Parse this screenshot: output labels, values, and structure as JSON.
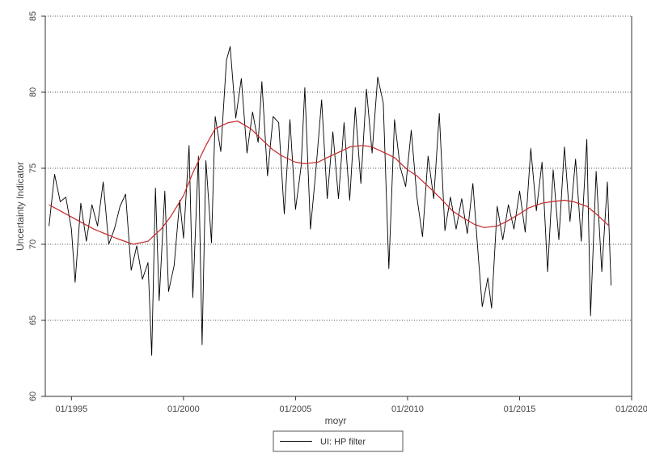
{
  "chart_data": {
    "type": "line",
    "title": "",
    "xlabel": "moyr",
    "ylabel": "Uncertainty Indicator",
    "xlim": [
      "1993-11",
      "2020-01"
    ],
    "ylim": [
      60,
      85
    ],
    "x_tick_labels": [
      "01/1995",
      "01/2000",
      "01/2005",
      "01/2010",
      "01/2015",
      "01/2020"
    ],
    "y_tick_labels": [
      "60",
      "65",
      "70",
      "75",
      "80",
      "85"
    ],
    "y_ticks": [
      60,
      65,
      70,
      75,
      80,
      85
    ],
    "grid": "horizontal dotted",
    "legend": {
      "position": "bottom-center",
      "label": "UI: HP filter"
    },
    "colors": {
      "raw": "#000000",
      "trend": "#c62828"
    },
    "series": [
      {
        "name": "UI",
        "points": [
          [
            "1994-01",
            71.2
          ],
          [
            "1994-04",
            74.6
          ],
          [
            "1994-07",
            72.8
          ],
          [
            "1994-10",
            73.1
          ],
          [
            "1995-01",
            71.0
          ],
          [
            "1995-03",
            67.5
          ],
          [
            "1995-06",
            72.7
          ],
          [
            "1995-09",
            70.2
          ],
          [
            "1995-12",
            72.6
          ],
          [
            "1996-03",
            71.2
          ],
          [
            "1996-06",
            74.1
          ],
          [
            "1996-09",
            70.0
          ],
          [
            "1996-12",
            71.0
          ],
          [
            "1997-03",
            72.5
          ],
          [
            "1997-06",
            73.3
          ],
          [
            "1997-09",
            68.3
          ],
          [
            "1997-12",
            69.9
          ],
          [
            "1998-03",
            67.7
          ],
          [
            "1998-06",
            68.8
          ],
          [
            "1998-08",
            62.7
          ],
          [
            "1998-10",
            73.7
          ],
          [
            "1998-12",
            66.3
          ],
          [
            "1999-03",
            73.5
          ],
          [
            "1999-05",
            66.9
          ],
          [
            "1999-08",
            68.6
          ],
          [
            "1999-11",
            72.9
          ],
          [
            "2000-01",
            70.4
          ],
          [
            "2000-04",
            76.5
          ],
          [
            "2000-06",
            66.5
          ],
          [
            "2000-09",
            75.8
          ],
          [
            "2000-11",
            63.4
          ],
          [
            "2001-01",
            75.5
          ],
          [
            "2001-04",
            70.1
          ],
          [
            "2001-06",
            78.4
          ],
          [
            "2001-09",
            76.1
          ],
          [
            "2001-12",
            82.1
          ],
          [
            "2002-02",
            83.0
          ],
          [
            "2002-05",
            78.3
          ],
          [
            "2002-08",
            80.9
          ],
          [
            "2002-11",
            76.0
          ],
          [
            "2003-02",
            78.7
          ],
          [
            "2003-05",
            76.7
          ],
          [
            "2003-07",
            80.7
          ],
          [
            "2003-10",
            74.5
          ],
          [
            "2004-01",
            78.4
          ],
          [
            "2004-04",
            78.0
          ],
          [
            "2004-07",
            72.0
          ],
          [
            "2004-10",
            78.2
          ],
          [
            "2005-01",
            72.3
          ],
          [
            "2005-04",
            75.1
          ],
          [
            "2005-06",
            80.3
          ],
          [
            "2005-09",
            71.0
          ],
          [
            "2005-12",
            75.0
          ],
          [
            "2006-03",
            79.5
          ],
          [
            "2006-06",
            73.0
          ],
          [
            "2006-09",
            77.4
          ],
          [
            "2006-12",
            73.0
          ],
          [
            "2007-03",
            78.0
          ],
          [
            "2007-06",
            72.9
          ],
          [
            "2007-09",
            79.0
          ],
          [
            "2007-12",
            74.0
          ],
          [
            "2008-03",
            80.2
          ],
          [
            "2008-06",
            76.0
          ],
          [
            "2008-09",
            81.0
          ],
          [
            "2008-12",
            79.3
          ],
          [
            "2009-03",
            68.4
          ],
          [
            "2009-06",
            78.2
          ],
          [
            "2009-09",
            75.1
          ],
          [
            "2009-12",
            73.8
          ],
          [
            "2010-03",
            77.5
          ],
          [
            "2010-06",
            73.1
          ],
          [
            "2010-09",
            70.5
          ],
          [
            "2010-12",
            75.8
          ],
          [
            "2011-03",
            73.0
          ],
          [
            "2011-06",
            78.6
          ],
          [
            "2011-09",
            70.9
          ],
          [
            "2011-12",
            73.1
          ],
          [
            "2012-03",
            71.0
          ],
          [
            "2012-06",
            73.0
          ],
          [
            "2012-09",
            70.7
          ],
          [
            "2012-12",
            74.0
          ],
          [
            "2013-03",
            69.0
          ],
          [
            "2013-05",
            65.9
          ],
          [
            "2013-08",
            67.8
          ],
          [
            "2013-10",
            65.8
          ],
          [
            "2014-01",
            72.5
          ],
          [
            "2014-04",
            70.3
          ],
          [
            "2014-07",
            72.6
          ],
          [
            "2014-10",
            71.0
          ],
          [
            "2015-01",
            73.5
          ],
          [
            "2015-04",
            70.8
          ],
          [
            "2015-07",
            76.3
          ],
          [
            "2015-10",
            72.2
          ],
          [
            "2016-01",
            75.4
          ],
          [
            "2016-04",
            68.2
          ],
          [
            "2016-07",
            74.9
          ],
          [
            "2016-10",
            70.3
          ],
          [
            "2017-01",
            76.4
          ],
          [
            "2017-04",
            71.5
          ],
          [
            "2017-07",
            75.6
          ],
          [
            "2017-10",
            70.2
          ],
          [
            "2018-01",
            76.9
          ],
          [
            "2018-03",
            65.3
          ],
          [
            "2018-06",
            74.8
          ],
          [
            "2018-09",
            68.2
          ],
          [
            "2018-12",
            74.1
          ],
          [
            "2019-02",
            67.3
          ]
        ]
      },
      {
        "name": "HP filter",
        "points": [
          [
            "1994-01",
            72.6
          ],
          [
            "1995-01",
            71.8
          ],
          [
            "1996-01",
            71.0
          ],
          [
            "1997-01",
            70.4
          ],
          [
            "1997-10",
            70.0
          ],
          [
            "1998-06",
            70.2
          ],
          [
            "1999-01",
            71.0
          ],
          [
            "1999-06",
            71.8
          ],
          [
            "2000-01",
            73.2
          ],
          [
            "2000-06",
            74.7
          ],
          [
            "2001-01",
            76.5
          ],
          [
            "2001-06",
            77.6
          ],
          [
            "2002-01",
            78.0
          ],
          [
            "2002-06",
            78.1
          ],
          [
            "2003-01",
            77.6
          ],
          [
            "2003-06",
            77.0
          ],
          [
            "2004-01",
            76.2
          ],
          [
            "2004-06",
            75.8
          ],
          [
            "2005-01",
            75.4
          ],
          [
            "2005-06",
            75.3
          ],
          [
            "2006-01",
            75.4
          ],
          [
            "2006-06",
            75.7
          ],
          [
            "2007-01",
            76.1
          ],
          [
            "2007-06",
            76.4
          ],
          [
            "2008-01",
            76.5
          ],
          [
            "2008-06",
            76.4
          ],
          [
            "2009-01",
            76.0
          ],
          [
            "2009-06",
            75.7
          ],
          [
            "2010-01",
            74.9
          ],
          [
            "2010-06",
            74.5
          ],
          [
            "2011-01",
            73.7
          ],
          [
            "2011-06",
            73.1
          ],
          [
            "2012-01",
            72.2
          ],
          [
            "2012-06",
            71.8
          ],
          [
            "2013-01",
            71.3
          ],
          [
            "2013-06",
            71.1
          ],
          [
            "2014-01",
            71.2
          ],
          [
            "2014-06",
            71.5
          ],
          [
            "2015-01",
            72.0
          ],
          [
            "2015-06",
            72.4
          ],
          [
            "2016-01",
            72.7
          ],
          [
            "2016-06",
            72.8
          ],
          [
            "2017-01",
            72.9
          ],
          [
            "2017-06",
            72.8
          ],
          [
            "2018-01",
            72.5
          ],
          [
            "2018-06",
            72.0
          ],
          [
            "2019-01",
            71.2
          ]
        ]
      }
    ]
  }
}
